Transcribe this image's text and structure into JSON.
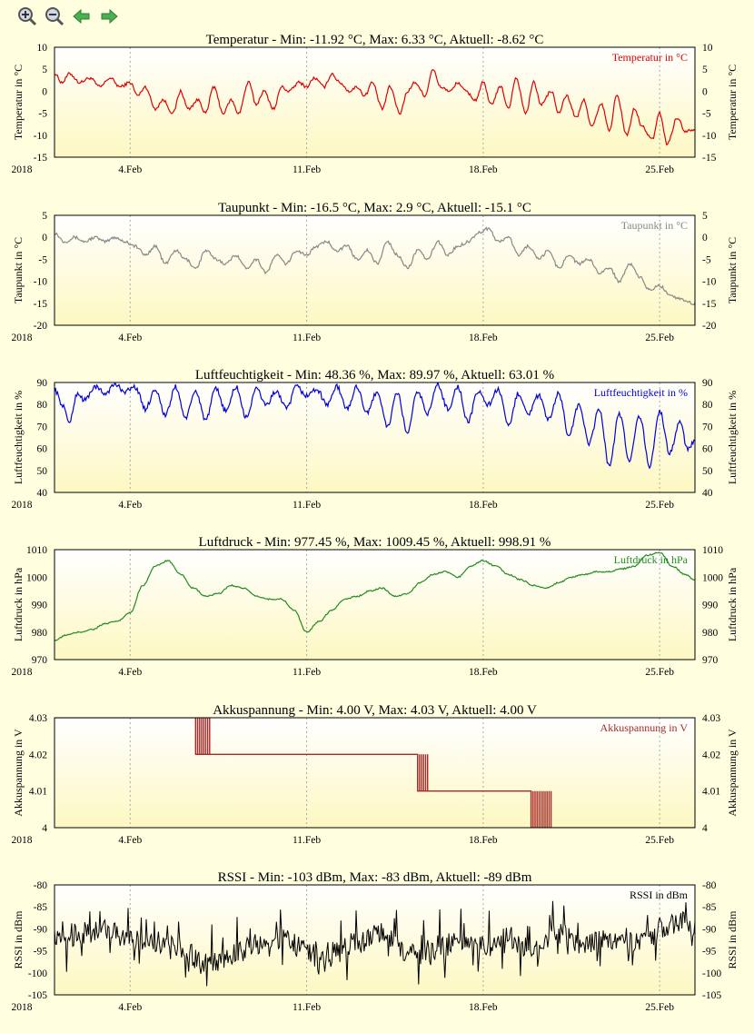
{
  "toolbar": {
    "zoom_in_icon": "magnifier-plus-icon",
    "zoom_out_icon": "magnifier-minus-icon",
    "back_icon": "arrow-left-icon",
    "forward_icon": "arrow-right-icon"
  },
  "x_axis": {
    "year_label": "2018",
    "ticks": [
      "4.Feb",
      "11.Feb",
      "18.Feb",
      "25.Feb"
    ],
    "tick_days": [
      3,
      10,
      17,
      24
    ],
    "day_range": [
      0,
      25.4
    ]
  },
  "colors": {
    "background": "#ffffe0",
    "temperature": "#e00000",
    "dewpoint": "#888888",
    "humidity": "#0000dd",
    "pressure": "#228b22",
    "battery": "#a52a2a",
    "rssi": "#000000"
  },
  "chart_data": [
    {
      "type": "line",
      "title": "Temperatur - Min: -11.92 °C, Max: 6.33 °C, Aktuell: -8.62 °C",
      "ylabel": "Temperatur in °C",
      "legend": "Temperatur in °C",
      "legend_position": "top-right",
      "color": "#e00000",
      "ylim": [
        -15,
        10
      ],
      "yticks": [
        "10",
        "5",
        "0",
        "-5",
        "-10",
        "-15"
      ],
      "ytick_values": [
        10,
        5,
        0,
        -5,
        -10,
        -15
      ],
      "x": [
        0,
        0.3,
        0.6,
        1,
        1.4,
        1.8,
        2.2,
        2.6,
        3,
        3.3,
        3.6,
        4,
        4.3,
        4.7,
        5,
        5.3,
        5.7,
        6,
        6.3,
        6.7,
        7,
        7.3,
        7.7,
        8,
        8.3,
        8.7,
        9,
        9.3,
        9.7,
        10,
        10.3,
        10.7,
        11,
        11.3,
        11.7,
        12,
        12.3,
        12.6,
        13,
        13.3,
        13.7,
        14,
        14.3,
        14.7,
        15,
        15.3,
        15.7,
        16,
        16.3,
        16.7,
        17,
        17.3,
        17.7,
        18,
        18.3,
        18.7,
        19,
        19.3,
        19.7,
        20,
        20.3,
        20.7,
        21,
        21.3,
        21.7,
        22,
        22.3,
        22.7,
        23,
        23.3,
        23.7,
        24,
        24.3,
        24.7,
        25,
        25.4
      ],
      "y": [
        4,
        2,
        4,
        2,
        3,
        1,
        3,
        1,
        2,
        -1,
        1,
        -4,
        -2,
        -5,
        0,
        -4,
        -2,
        -5,
        1,
        -5,
        -2,
        -5,
        2,
        -3,
        0,
        -4,
        1,
        0,
        2,
        1,
        3,
        1,
        4,
        2,
        0,
        1,
        -1,
        2,
        -4,
        1,
        -5,
        0,
        2,
        -1,
        5,
        1,
        0,
        2,
        0,
        -2,
        2,
        -3,
        1,
        -4,
        3,
        -5,
        2,
        -3,
        0,
        -5,
        -1,
        -6,
        -2,
        -8,
        -3,
        -9,
        -1,
        -10,
        -4,
        -8,
        -11,
        -5,
        -12,
        -6,
        -9,
        -8.62
      ]
    },
    {
      "type": "line",
      "title": "Taupunkt - Min: -16.5 °C, Max: 2.9 °C, Aktuell: -15.1 °C",
      "ylabel": "Taupunkt in °C",
      "legend": "Taupunkt in °C",
      "legend_position": "top-right",
      "color": "#888888",
      "ylim": [
        -20,
        5
      ],
      "yticks": [
        "5",
        "0",
        "-5",
        "-10",
        "-15",
        "-20"
      ],
      "ytick_values": [
        5,
        0,
        -5,
        -10,
        -15,
        -20
      ],
      "x": [
        0,
        0.4,
        0.8,
        1.2,
        1.6,
        2,
        2.4,
        2.8,
        3.2,
        3.6,
        4,
        4.4,
        4.8,
        5.2,
        5.6,
        6,
        6.4,
        6.8,
        7.2,
        7.6,
        8,
        8.4,
        8.8,
        9.2,
        9.6,
        10,
        10.4,
        10.8,
        11.2,
        11.6,
        12,
        12.4,
        12.8,
        13.2,
        13.6,
        14,
        14.4,
        14.8,
        15.2,
        15.6,
        16,
        16.4,
        16.8,
        17.2,
        17.6,
        18,
        18.4,
        18.8,
        19.2,
        19.6,
        20,
        20.4,
        20.8,
        21.2,
        21.6,
        22,
        22.4,
        22.8,
        23.2,
        23.6,
        24,
        24.4,
        24.8,
        25.4
      ],
      "y": [
        1,
        -1,
        0,
        -1,
        0,
        -1,
        0,
        -1,
        -2,
        -4,
        -2,
        -6,
        -3,
        -5,
        -7,
        -3,
        -5,
        -6,
        -4,
        -7,
        -5,
        -8,
        -4,
        -6,
        -3,
        -4,
        -2,
        -1,
        -3,
        -2,
        -5,
        -3,
        -6,
        -1,
        -4,
        -7,
        -3,
        -5,
        -1,
        -4,
        -2,
        -1,
        1,
        2,
        -1,
        0,
        -4,
        -2,
        -5,
        -3,
        -7,
        -4,
        -6,
        -5,
        -8,
        -7,
        -10,
        -6,
        -9,
        -12,
        -11,
        -13,
        -14,
        -15.1
      ]
    },
    {
      "type": "line",
      "title": "Luftfeuchtigkeit - Min: 48.36 %, Max: 89.97 %, Aktuell: 63.01 %",
      "ylabel": "Luftfeuchtigkeit in %",
      "legend": "Luftfeuchtigkeit in %",
      "legend_position": "top-right",
      "color": "#0000dd",
      "ylim": [
        40,
        90
      ],
      "yticks": [
        "90",
        "80",
        "70",
        "60",
        "50",
        "40"
      ],
      "ytick_values": [
        90,
        80,
        70,
        60,
        50,
        40
      ],
      "x": [
        0,
        0.3,
        0.6,
        0.9,
        1.2,
        1.6,
        2,
        2.4,
        2.8,
        3.2,
        3.6,
        4,
        4.4,
        4.8,
        5.2,
        5.6,
        6,
        6.4,
        6.8,
        7.2,
        7.6,
        8,
        8.4,
        8.8,
        9.2,
        9.6,
        10,
        10.4,
        10.8,
        11.2,
        11.6,
        12,
        12.4,
        12.8,
        13.2,
        13.6,
        14,
        14.4,
        14.8,
        15.2,
        15.6,
        16,
        16.4,
        16.8,
        17.2,
        17.6,
        18,
        18.4,
        18.8,
        19.2,
        19.6,
        20,
        20.4,
        20.8,
        21.2,
        21.6,
        22,
        22.4,
        22.8,
        23.2,
        23.6,
        24,
        24.4,
        24.8,
        25.1,
        25.4
      ],
      "y": [
        87,
        80,
        72,
        85,
        82,
        88,
        85,
        89,
        86,
        88,
        78,
        87,
        75,
        88,
        74,
        86,
        73,
        87,
        77,
        88,
        74,
        87,
        80,
        86,
        78,
        88,
        84,
        87,
        80,
        88,
        78,
        88,
        76,
        86,
        70,
        85,
        67,
        86,
        76,
        89,
        78,
        88,
        72,
        86,
        80,
        87,
        70,
        85,
        76,
        84,
        73,
        85,
        66,
        80,
        62,
        78,
        52,
        76,
        55,
        75,
        52,
        77,
        58,
        72,
        60,
        63.01
      ]
    },
    {
      "type": "line",
      "title": "Luftdruck - Min: 977.45 %, Max: 1009.45 %, Aktuell: 998.91 %",
      "ylabel": "Luftdruck in hPa",
      "legend": "Luftdruck in hPa",
      "legend_position": "top-right",
      "color": "#228b22",
      "ylim": [
        970,
        1010
      ],
      "yticks": [
        "1010",
        "1000",
        "990",
        "980",
        "970"
      ],
      "ytick_values": [
        1010,
        1000,
        990,
        980,
        970
      ],
      "x": [
        0,
        0.5,
        1,
        1.5,
        2,
        2.5,
        3,
        3.5,
        4,
        4.5,
        5,
        5.5,
        6,
        6.5,
        7,
        7.5,
        8,
        8.5,
        9,
        9.5,
        10,
        10.5,
        11,
        11.5,
        12,
        12.5,
        13,
        13.5,
        14,
        14.5,
        15,
        15.5,
        16,
        16.5,
        17,
        17.5,
        18,
        18.5,
        19,
        19.5,
        20,
        20.5,
        21,
        21.5,
        22,
        22.5,
        23,
        23.5,
        24,
        24.5,
        25,
        25.4
      ],
      "y": [
        977,
        979,
        980,
        981,
        983,
        984,
        987,
        997,
        1004,
        1006,
        1001,
        996,
        993,
        994,
        997,
        996,
        993,
        992,
        992,
        988,
        980,
        984,
        988,
        992,
        993,
        995,
        996,
        993,
        994,
        998,
        1001,
        1002,
        1000,
        1004,
        1006,
        1004,
        1001,
        999,
        997,
        996,
        998,
        1000,
        1001,
        1002,
        1002,
        1003,
        1004,
        1008,
        1009,
        1004,
        1001,
        998.91
      ]
    },
    {
      "type": "line",
      "title": "Akkuspannung - Min: 4.00 V, Max: 4.03 V, Aktuell: 4.00 V",
      "ylabel": "Akkuspannung in V",
      "legend": "Akkuspannung in V",
      "legend_position": "top-right",
      "color": "#a52a2a",
      "ylim": [
        4.0,
        4.03
      ],
      "yticks": [
        "4.03",
        "4.02",
        "4.01",
        "4"
      ],
      "ytick_values": [
        4.03,
        4.02,
        4.01,
        4.0
      ],
      "x": [
        0,
        5.6,
        5.6,
        6.2,
        6.2,
        14.4,
        14.4,
        14.8,
        14.8,
        18.9,
        18.9,
        19.7,
        19.7,
        25.4
      ],
      "y": [
        4.03,
        4.03,
        4.02,
        4.02,
        4.02,
        4.02,
        4.01,
        4.01,
        4.01,
        4.01,
        4.0,
        4.0,
        4.0,
        4.0
      ],
      "noise_bands": [
        [
          5.6,
          6.2,
          4.02,
          4.03
        ],
        [
          14.4,
          14.8,
          4.01,
          4.02
        ],
        [
          18.9,
          19.7,
          4.0,
          4.01
        ]
      ]
    },
    {
      "type": "line",
      "title": "RSSI - Min: -103 dBm, Max: -83 dBm, Aktuell: -89 dBm",
      "ylabel": "RSSI in dBm",
      "legend": "RSSI in dBm",
      "legend_position": "top-right",
      "color": "#000000",
      "ylim": [
        -105,
        -80
      ],
      "yticks": [
        "-80",
        "-85",
        "-90",
        "-95",
        "-100",
        "-105"
      ],
      "ytick_values": [
        -80,
        -85,
        -90,
        -95,
        -100,
        -105
      ],
      "x": [
        0,
        1,
        2,
        3,
        4,
        5,
        6,
        7,
        8,
        9,
        10,
        11,
        12,
        13,
        14,
        15,
        16,
        17,
        18,
        19,
        20,
        21,
        22,
        23,
        24,
        25,
        25.4
      ],
      "y": [
        -93,
        -91,
        -90,
        -92,
        -93,
        -94,
        -98,
        -96,
        -94,
        -92,
        -95,
        -96,
        -93,
        -91,
        -96,
        -95,
        -93,
        -94,
        -92,
        -95,
        -91,
        -94,
        -92,
        -94,
        -90,
        -88,
        -89
      ]
    }
  ]
}
